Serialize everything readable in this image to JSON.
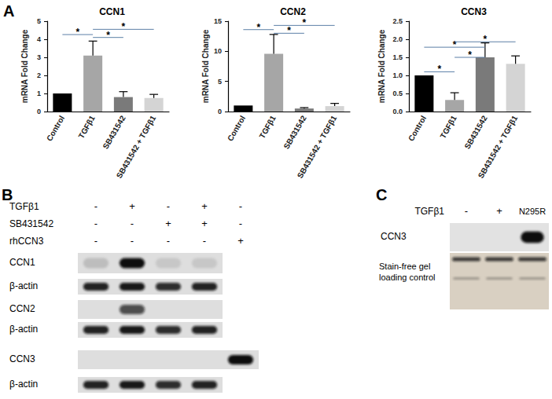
{
  "chart_data": [
    {
      "type": "bar",
      "title": "CCN1",
      "categories": [
        "Control",
        "TGFβ1",
        "SB431542",
        "SB431542 + TGFβ1"
      ],
      "values": [
        1.0,
        3.1,
        0.8,
        0.75
      ],
      "errors": [
        0,
        0.8,
        0.3,
        0.2
      ],
      "colors": [
        "#000000",
        "#a6a6a6",
        "#7a7a7a",
        "#d4d4d4"
      ],
      "ylabel": "mRNA Fold Change",
      "ylim": [
        0,
        5
      ],
      "yticks": [
        0,
        1,
        2,
        3,
        4,
        5
      ],
      "grid": false,
      "significance": [
        {
          "from": "Control",
          "to": "TGFβ1",
          "y": 4.26,
          "label": "*"
        },
        {
          "from": "TGFβ1",
          "to": "SB431542",
          "y": 4.1,
          "label": "*"
        },
        {
          "from": "TGFβ1",
          "to": "SB431542 + TGFβ1",
          "y": 4.55,
          "label": "*"
        }
      ]
    },
    {
      "type": "bar",
      "title": "CCN2",
      "categories": [
        "Control",
        "TGFβ1",
        "SB431542",
        "SB431542 + TGFβ1"
      ],
      "values": [
        1.0,
        9.6,
        0.5,
        0.9
      ],
      "errors": [
        0,
        3.2,
        0.15,
        0.45
      ],
      "colors": [
        "#000000",
        "#a6a6a6",
        "#7a7a7a",
        "#d4d4d4"
      ],
      "ylabel": "mRNA Fold Change",
      "ylim": [
        0,
        15
      ],
      "yticks": [
        0,
        5,
        10,
        15
      ],
      "grid": false,
      "significance": [
        {
          "from": "Control",
          "to": "TGFβ1",
          "y": 13.6,
          "label": "*"
        },
        {
          "from": "TGFβ1",
          "to": "SB431542",
          "y": 13.0,
          "label": "*"
        },
        {
          "from": "TGFβ1",
          "to": "SB431542 + TGFβ1",
          "y": 14.3,
          "label": "*"
        }
      ]
    },
    {
      "type": "bar",
      "title": "CCN3",
      "categories": [
        "Control",
        "TGFβ1",
        "SB431542",
        "SB431542 + TGFβ1"
      ],
      "values": [
        1.0,
        0.32,
        1.5,
        1.32
      ],
      "errors": [
        0,
        0.2,
        0.4,
        0.22
      ],
      "colors": [
        "#000000",
        "#a6a6a6",
        "#7a7a7a",
        "#d4d4d4"
      ],
      "ylabel": "mRNA Fold Change",
      "ylim": [
        0,
        2.5
      ],
      "yticks": [
        {
          "value": 0,
          "label": "0.0"
        },
        {
          "value": 0.5,
          "label": "0.5"
        },
        {
          "value": 1,
          "label": "1.0"
        },
        {
          "value": 1.5,
          "label": "1.5"
        },
        {
          "value": 2,
          "label": "2.0"
        },
        {
          "value": 2.5,
          "label": "2.5"
        }
      ],
      "grid": false,
      "significance": [
        {
          "from": "Control",
          "to": "TGFβ1",
          "y": 1.1,
          "label": "*"
        },
        {
          "from": "Control",
          "to": "SB431542",
          "y": 1.78,
          "label": "*"
        },
        {
          "from": "TGFβ1",
          "to": "SB431542",
          "y": 1.5,
          "label": "*"
        },
        {
          "from": "TGFβ1",
          "to": "SB431542 + TGFβ1",
          "y": 1.93,
          "label": "*"
        }
      ]
    }
  ],
  "panel_A": {
    "label": "A"
  },
  "panel_B": {
    "label": "B",
    "conditions": [
      {
        "name": "TGFβ1",
        "marks": [
          "-",
          "+",
          "-",
          "+",
          "-"
        ]
      },
      {
        "name": "SB431542",
        "marks": [
          "-",
          "-",
          "+",
          "+",
          "-"
        ]
      },
      {
        "name": "rhCCN3",
        "marks": [
          "-",
          "-",
          "-",
          "-",
          "+"
        ]
      }
    ],
    "blots": [
      {
        "label": "CCN1",
        "bands": [
          0.15,
          1,
          0.1,
          0.1
        ]
      },
      {
        "label": "β-actin",
        "bands": [
          0.9,
          0.95,
          0.85,
          0.9
        ]
      },
      {
        "label": "CCN2",
        "bands": [
          0,
          0.7,
          0,
          0
        ]
      },
      {
        "label": "β-actin",
        "bands": [
          0.9,
          0.95,
          0.85,
          0.9
        ]
      },
      {
        "label": "CCN3",
        "bands": [
          0,
          0,
          0,
          0,
          1
        ]
      },
      {
        "label": "β-actin",
        "bands": [
          0.9,
          0.95,
          0.85,
          0.9
        ]
      }
    ]
  },
  "panel_C": {
    "label": "C",
    "conditions": [
      {
        "name": "TGFβ1",
        "marks": [
          "-",
          "+",
          "N295R"
        ]
      }
    ],
    "blots": [
      {
        "label": "CCN3",
        "bands": [
          0,
          0,
          1
        ]
      },
      {
        "label": "Stain-free gel loading control",
        "bands": [
          0.8,
          0.8,
          0.8
        ]
      }
    ]
  }
}
